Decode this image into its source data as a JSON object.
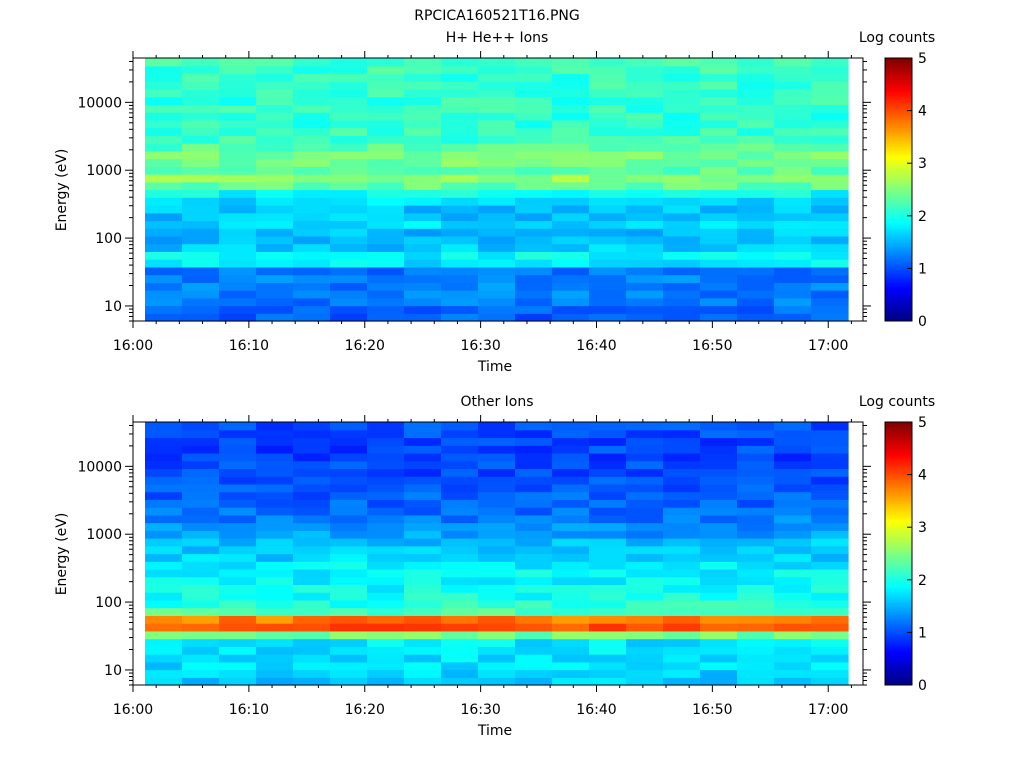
{
  "figure_title": "RPCICA160521T16.PNG",
  "chart_data": [
    {
      "type": "heatmap",
      "title": "H+ He++ Ions",
      "xlabel": "Time",
      "ylabel": "Energy (eV)",
      "x_ticks": [
        "16:00",
        "16:10",
        "16:20",
        "16:30",
        "16:40",
        "16:50",
        "17:00"
      ],
      "x_range": [
        "16:00",
        "17:03"
      ],
      "y_scale": "log",
      "y_ticks": [
        "10",
        "100",
        "1000",
        "10000"
      ],
      "y_range": [
        6,
        45000
      ],
      "colorbar": {
        "label": "Log counts",
        "ticks": [
          "0",
          "1",
          "2",
          "3",
          "4",
          "5"
        ],
        "range": [
          0,
          5
        ],
        "colormap": "jet"
      },
      "time_columns": [
        "16:01",
        "16:04",
        "16:08",
        "16:11",
        "16:14",
        "16:18",
        "16:21",
        "16:24",
        "16:28",
        "16:31",
        "16:34",
        "16:38",
        "16:41",
        "16:44",
        "16:48",
        "16:51",
        "16:54",
        "16:58",
        "17:01"
      ],
      "energy_profile": [
        {
          "energy_ev": 7,
          "log_counts": 1.1
        },
        {
          "energy_ev": 10,
          "log_counts": 1.2
        },
        {
          "energy_ev": 15,
          "log_counts": 1.25
        },
        {
          "energy_ev": 22,
          "log_counts": 1.25
        },
        {
          "energy_ev": 33,
          "log_counts": 1.2
        },
        {
          "energy_ev": 42,
          "log_counts": 1.7
        },
        {
          "energy_ev": 50,
          "log_counts": 2.3
        },
        {
          "energy_ev": 58,
          "log_counts": 1.7
        },
        {
          "energy_ev": 75,
          "log_counts": 1.6
        },
        {
          "energy_ev": 110,
          "log_counts": 1.5
        },
        {
          "energy_ev": 160,
          "log_counts": 1.7
        },
        {
          "energy_ev": 240,
          "log_counts": 1.5
        },
        {
          "energy_ev": 350,
          "log_counts": 1.7
        },
        {
          "energy_ev": 520,
          "log_counts": 2.0
        },
        {
          "energy_ev": 680,
          "log_counts": 2.75
        },
        {
          "energy_ev": 950,
          "log_counts": 2.3
        },
        {
          "energy_ev": 1550,
          "log_counts": 2.5
        },
        {
          "energy_ev": 2500,
          "log_counts": 2.2
        },
        {
          "energy_ev": 5000,
          "log_counts": 2.1
        },
        {
          "energy_ev": 12000,
          "log_counts": 2.1
        },
        {
          "energy_ev": 35000,
          "log_counts": 2.15
        }
      ]
    },
    {
      "type": "heatmap",
      "title": "Other Ions",
      "xlabel": "Time",
      "ylabel": "Energy (eV)",
      "x_ticks": [
        "16:00",
        "16:10",
        "16:20",
        "16:30",
        "16:40",
        "16:50",
        "17:00"
      ],
      "x_range": [
        "16:00",
        "17:03"
      ],
      "y_scale": "log",
      "y_ticks": [
        "10",
        "100",
        "1000",
        "10000"
      ],
      "y_range": [
        6,
        45000
      ],
      "colorbar": {
        "label": "Log counts",
        "ticks": [
          "0",
          "1",
          "2",
          "3",
          "4",
          "5"
        ],
        "range": [
          0,
          5
        ],
        "colormap": "jet"
      },
      "time_columns": [
        "16:01",
        "16:04",
        "16:08",
        "16:11",
        "16:14",
        "16:18",
        "16:21",
        "16:24",
        "16:28",
        "16:31",
        "16:34",
        "16:38",
        "16:41",
        "16:44",
        "16:48",
        "16:51",
        "16:54",
        "16:58",
        "17:01"
      ],
      "energy_profile": [
        {
          "energy_ev": 7,
          "log_counts": 1.6
        },
        {
          "energy_ev": 10,
          "log_counts": 1.7
        },
        {
          "energy_ev": 15,
          "log_counts": 1.75
        },
        {
          "energy_ev": 22,
          "log_counts": 1.75
        },
        {
          "energy_ev": 30,
          "log_counts": 1.8
        },
        {
          "energy_ev": 36,
          "log_counts": 3.0
        },
        {
          "energy_ev": 40,
          "log_counts": 3.7
        },
        {
          "energy_ev": 47,
          "log_counts": 4.3
        },
        {
          "energy_ev": 55,
          "log_counts": 3.9
        },
        {
          "energy_ev": 62,
          "log_counts": 3.0
        },
        {
          "energy_ev": 75,
          "log_counts": 2.1
        },
        {
          "energy_ev": 110,
          "log_counts": 2.0
        },
        {
          "energy_ev": 160,
          "log_counts": 1.9
        },
        {
          "energy_ev": 240,
          "log_counts": 1.85
        },
        {
          "energy_ev": 350,
          "log_counts": 1.8
        },
        {
          "energy_ev": 520,
          "log_counts": 1.6
        },
        {
          "energy_ev": 700,
          "log_counts": 1.7
        },
        {
          "energy_ev": 950,
          "log_counts": 1.4
        },
        {
          "energy_ev": 1500,
          "log_counts": 1.25
        },
        {
          "energy_ev": 3000,
          "log_counts": 1.1
        },
        {
          "energy_ev": 6000,
          "log_counts": 1.05
        },
        {
          "energy_ev": 12000,
          "log_counts": 0.95
        },
        {
          "energy_ev": 25000,
          "log_counts": 0.95
        },
        {
          "energy_ev": 40000,
          "log_counts": 1.0
        }
      ]
    }
  ]
}
